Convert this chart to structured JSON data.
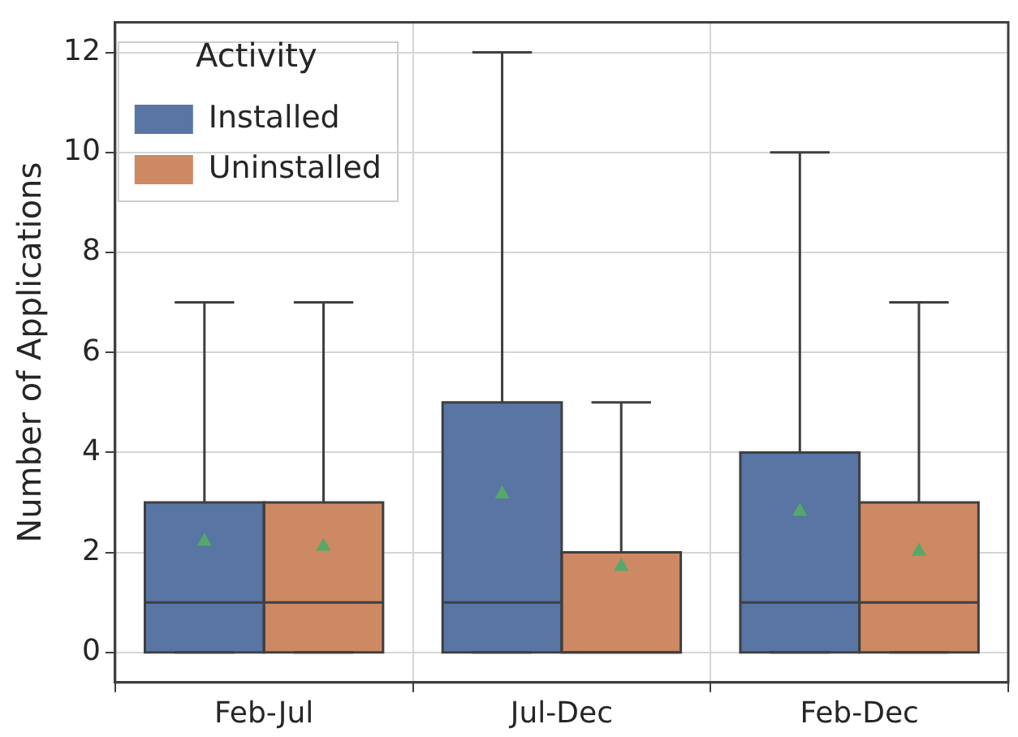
{
  "chart_data": {
    "type": "box",
    "categories": [
      "Feb-Jul",
      "Jul-Dec",
      "Feb-Dec"
    ],
    "ylabel": "Number of Applications",
    "legend_title": "Activity",
    "legend": "top left",
    "grid": true,
    "marker": "triangle",
    "ylim": [
      -0.6,
      12.6
    ],
    "yticks": [
      0,
      2,
      4,
      6,
      8,
      10,
      12
    ],
    "series": [
      {
        "name": "Installed",
        "color": "#5875a4",
        "boxes": [
          {
            "low": 0,
            "q1": 0,
            "median": 1,
            "q3": 3,
            "high": 7,
            "mean": 2.25
          },
          {
            "low": 0,
            "q1": 0,
            "median": 1,
            "q3": 5,
            "high": 12,
            "mean": 3.2
          },
          {
            "low": 0,
            "q1": 0,
            "median": 1,
            "q3": 4,
            "high": 10,
            "mean": 2.85
          }
        ]
      },
      {
        "name": "Uninstalled",
        "color": "#cc8963",
        "boxes": [
          {
            "low": 0,
            "q1": 0,
            "median": 1,
            "q3": 3,
            "high": 7,
            "mean": 2.15
          },
          {
            "low": 0,
            "q1": 0,
            "median": 0,
            "q3": 2,
            "high": 5,
            "mean": 1.75
          },
          {
            "low": 0,
            "q1": 0,
            "median": 1,
            "q3": 3,
            "high": 7,
            "mean": 2.05
          }
        ]
      }
    ]
  }
}
